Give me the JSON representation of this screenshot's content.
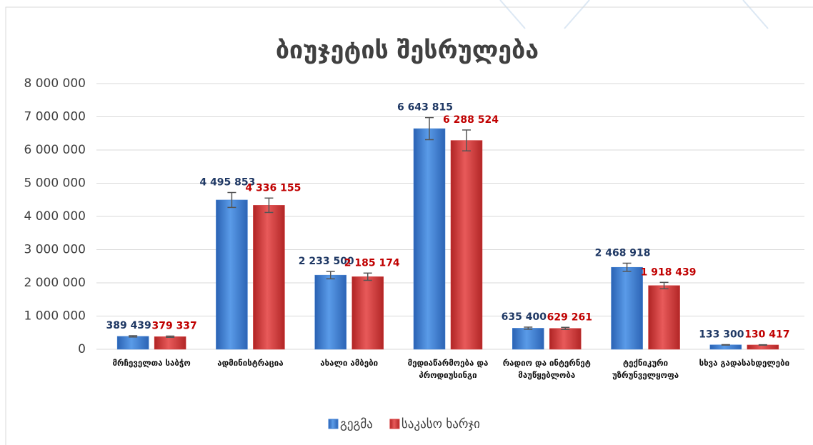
{
  "chart_data": {
    "type": "bar",
    "title": "ბიუჯეტის შესრულება",
    "categories": [
      "მრჩეველთა საბჭო",
      "ადმინისტრაცია",
      "ახალი ამბები",
      "მედიაწარმოება და პროდიუსინგი",
      "რადიო და ინტერნეტ მაუწყებლობა",
      "ტექნიკური უზრუნველყოფა",
      "სხვა გადასახდელები"
    ],
    "series": [
      {
        "name": "გეგმა",
        "color": "#3f7fd3",
        "values": [
          389439,
          4495853,
          2233500,
          6643815,
          635400,
          2468918,
          133300
        ],
        "value_labels": [
          "389 439",
          "4 495 853",
          "2 233 500",
          "6 643 815",
          "635 400",
          "2 468 918",
          "133 300"
        ],
        "label_color": "#1f3864"
      },
      {
        "name": "საკასო ხარჯი",
        "color": "#d63b3b",
        "values": [
          379337,
          4336155,
          2185174,
          6288524,
          629261,
          1918439,
          130417
        ],
        "value_labels": [
          "379 337",
          "4 336 155",
          "2 185 174",
          "6 288 524",
          "629 261",
          "1 918 439",
          "130 417"
        ],
        "label_color": "#c00000"
      }
    ],
    "error_percent": 5,
    "ylim": [
      0,
      8000000
    ],
    "yticks": [
      0,
      {
        "value": 1000000,
        "label": "1 000 000"
      },
      {
        "value": 2000000,
        "label": "2 000 000"
      },
      {
        "value": 3000000,
        "label": "3 000 000"
      },
      {
        "value": 4000000,
        "label": "4 000 000"
      },
      {
        "value": 5000000,
        "label": "5 000 000"
      },
      {
        "value": 6000000,
        "label": "6 000 000"
      },
      {
        "value": 7000000,
        "label": "7 000 000"
      },
      {
        "value": 8000000,
        "label": "8 000 000"
      }
    ],
    "grid": true,
    "legend": "bottom"
  }
}
